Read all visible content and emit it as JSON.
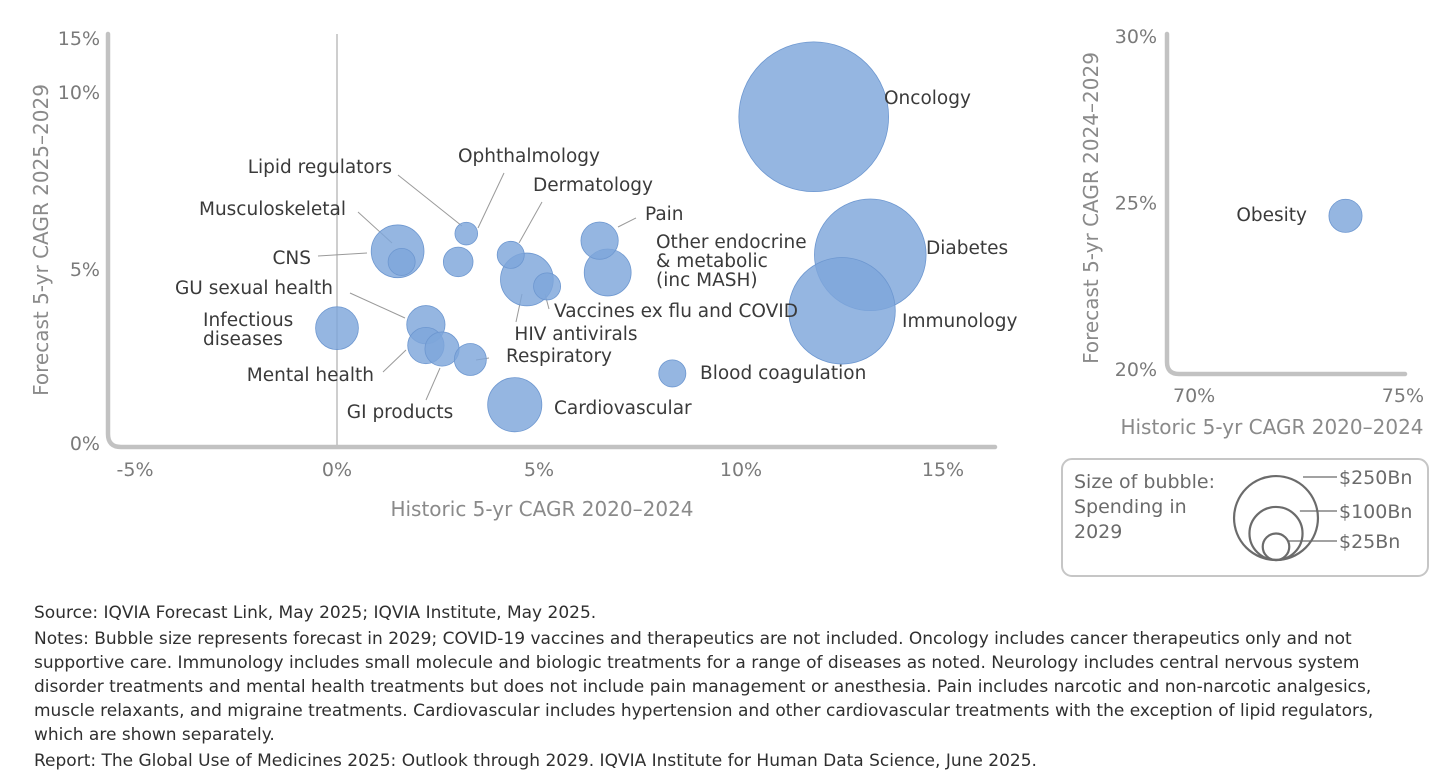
{
  "chart_data": [
    {
      "type": "scatter",
      "subtype": "bubble",
      "xlabel": "Historic 5-yr CAGR 2020–2024",
      "ylabel": "Forecast 5-yr CAGR 2025–2029",
      "xlim": [
        -0.06,
        0.162
      ],
      "ylim": [
        0,
        0.15
      ],
      "x_ticks": [
        "-5%",
        "0%",
        "5%",
        "10%",
        "15%"
      ],
      "x_tick_values": [
        -0.05,
        0,
        0.05,
        0.1,
        0.15
      ],
      "y_ticks": [
        "15%",
        "10%",
        "5%",
        "0%"
      ],
      "y_tick_values": [
        0.15,
        0.1,
        0.05,
        0
      ],
      "y_scale": "broken",
      "grid": false,
      "points": [
        {
          "label": "Oncology",
          "x": 0.118,
          "y": 0.093,
          "spend_bn": 306
        },
        {
          "label": "Diabetes",
          "x": 0.132,
          "y": 0.054,
          "spend_bn": 170
        },
        {
          "label": "Immunology",
          "x": 0.125,
          "y": 0.038,
          "spend_bn": 155
        },
        {
          "label": "CNS",
          "x": 0.015,
          "y": 0.055,
          "spend_bn": 38
        },
        {
          "label": "Musculoskeletal",
          "x": 0.016,
          "y": 0.052,
          "spend_bn": 10
        },
        {
          "label": "Lipid regulators",
          "x": 0.032,
          "y": 0.06,
          "spend_bn": 7
        },
        {
          "label": "Ophthalmology",
          "x": 0.03,
          "y": 0.052,
          "spend_bn": 12
        },
        {
          "label": "Dermatology",
          "x": 0.043,
          "y": 0.054,
          "spend_bn": 10
        },
        {
          "label": "HIV antivirals",
          "x": 0.047,
          "y": 0.047,
          "spend_bn": 38
        },
        {
          "label": "Vaccines ex flu and COVID",
          "x": 0.052,
          "y": 0.045,
          "spend_bn": 10
        },
        {
          "label": "Pain",
          "x": 0.065,
          "y": 0.058,
          "spend_bn": 19
        },
        {
          "label": "Other endocrine & metabolic (inc MASH)",
          "x": 0.067,
          "y": 0.049,
          "spend_bn": 30
        },
        {
          "label": "GU sexual health",
          "x": 0.022,
          "y": 0.034,
          "spend_bn": 20
        },
        {
          "label": "Infectious diseases",
          "x": 0.0,
          "y": 0.033,
          "spend_bn": 25
        },
        {
          "label": "Mental health",
          "x": 0.022,
          "y": 0.028,
          "spend_bn": 18
        },
        {
          "label": "GI products",
          "x": 0.026,
          "y": 0.027,
          "spend_bn": 16
        },
        {
          "label": "Respiratory",
          "x": 0.033,
          "y": 0.024,
          "spend_bn": 14
        },
        {
          "label": "Blood coagulation",
          "x": 0.083,
          "y": 0.02,
          "spend_bn": 10
        },
        {
          "label": "Cardiovascular",
          "x": 0.044,
          "y": 0.011,
          "spend_bn": 40
        }
      ]
    },
    {
      "type": "scatter",
      "subtype": "bubble",
      "xlabel": "Historic 5-yr CAGR 2020–2024",
      "ylabel": "Forecast 5-yr CAGR 2024–2029",
      "xlim": [
        0.7,
        0.75
      ],
      "ylim": [
        0.2,
        0.3
      ],
      "x_ticks": [
        "70%",
        "75%"
      ],
      "y_ticks": [
        "30%",
        "25%",
        "20%"
      ],
      "grid": false,
      "points": [
        {
          "label": "Obesity",
          "x": 0.7375,
          "y": 0.246,
          "spend_bn": 15
        }
      ]
    }
  ],
  "legend": {
    "title_lines": [
      "Size of bubble:",
      "Spending in",
      "2029"
    ],
    "sizes": [
      {
        "label": "$250Bn",
        "value_bn": 250
      },
      {
        "label": "$100Bn",
        "value_bn": 100
      },
      {
        "label": "$25Bn",
        "value_bn": 25
      }
    ]
  },
  "footer": {
    "source": "Source: IQVIA Forecast Link, May 2025; IQVIA Institute, May 2025.",
    "notes": [
      "Notes: Bubble size represents forecast in 2029; COVID-19 vaccines and therapeutics are not included. Oncology includes cancer therapeutics only and not",
      "supportive care. Immunology includes small molecule and biologic treatments for a range of diseases as noted. Neurology includes central nervous system",
      "disorder treatments and mental health treatments but does not include pain management or anesthesia. Pain includes narcotic and non-narcotic analgesics,",
      "muscle relaxants, and migraine treatments. Cardiovascular includes hypertension and other cardiovascular treatments with the exception of lipid regulators,",
      "which are shown separately."
    ],
    "report": "Report: The Global Use of Medicines 2025: Outlook through 2029. IQVIA Institute for Human Data Science, June 2025."
  },
  "colors": {
    "bubble": "#7ea6db",
    "bubble_stroke": "#6d97d0",
    "axis": "#bdbdbd",
    "leader": "#9a9a9a",
    "legend_border": "#c6c6c6",
    "legend_circles": "#6b6b6b"
  }
}
